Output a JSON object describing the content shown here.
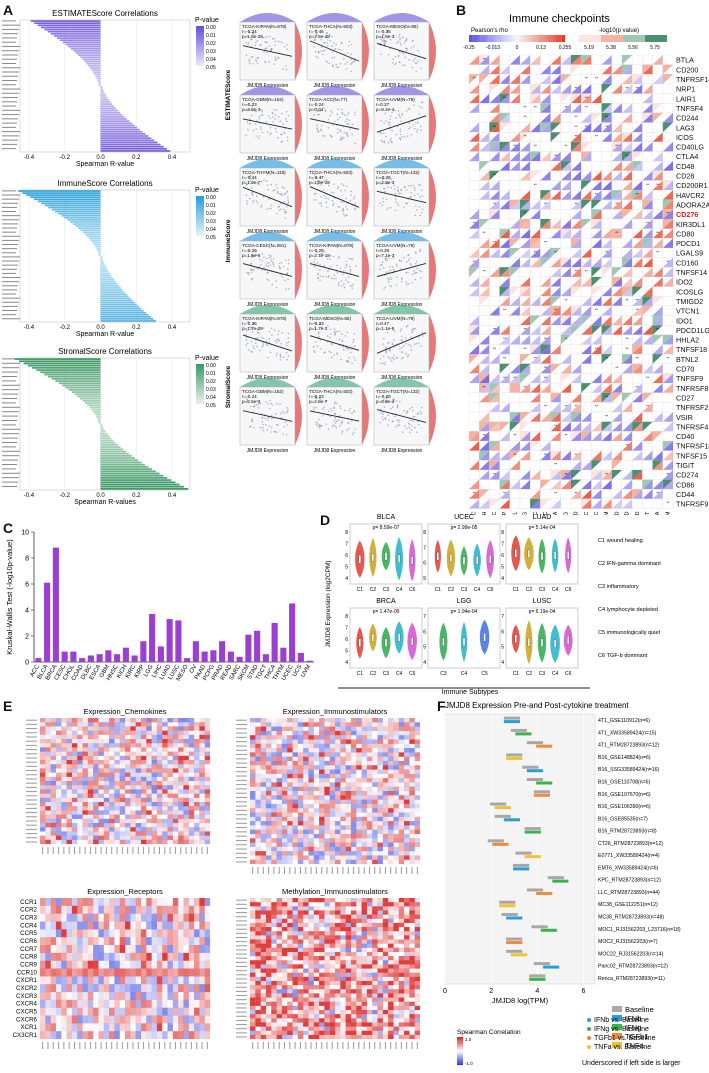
{
  "panels": {
    "A": "A",
    "B": "B",
    "C": "C",
    "D": "D",
    "E": "E",
    "F": "F"
  },
  "panelA": {
    "titles": [
      "ESTIMATEScore Correlations",
      "ImmuneScore Correlations",
      "StromalScore Correlations"
    ],
    "xlabels": [
      "Spearman R-value",
      "Spearman R-value",
      "Spearman R-values"
    ],
    "legend_title": "P-value",
    "legend_ticks": [
      "0.00",
      "0.01",
      "0.02",
      "0.03",
      "0.04",
      "0.05"
    ],
    "xticks": [
      "-0.4",
      "-0.2",
      "0.0",
      "0.2",
      "0.4"
    ],
    "colors": [
      "#6a4fd8",
      "#2aa0d8",
      "#3e9a66"
    ],
    "ylabels": [
      "ESTIMATEScore",
      "ImmuneScore",
      "StromalScore"
    ],
    "scatter_xlabel": "JMJD8 Expression",
    "scatter_panels": [
      {
        "label": "TCGA-KIPAN(N=878)",
        "r": "r=-0.24",
        "p": "p=1.8e-28"
      },
      {
        "label": "TCGA-THCA(N=503)",
        "r": "r=-0.46",
        "p": "p=2.5e-28"
      },
      {
        "label": "TCGA-MESO(N=85)",
        "r": "r=-0.35",
        "p": "p=1.8e-3"
      },
      {
        "label": "TCGA-GBM(N=152)",
        "r": "r=-0.23",
        "p": "p=3.8e-3"
      },
      {
        "label": "TCGA-ACC(N=77)",
        "r": "r=-0.24",
        "p": "p=0.04"
      },
      {
        "label": "TCGA-UVM(N=79)",
        "r": "r=0.37",
        "p": "p=8.2e-4"
      },
      {
        "label": "TCGA-THYM(N=118)",
        "r": "r=-0.44",
        "p": "p=1.9e-7"
      },
      {
        "label": "TCGA-THCA(N=503)",
        "r": "r=-0.47",
        "p": "p=1.9e-28"
      },
      {
        "label": "TCGA-TGCT(N=132)",
        "r": "r=-0.26",
        "p": "p=2.8e-3"
      },
      {
        "label": "TCGA-CESC(N=291)",
        "r": "r=-0.29",
        "p": "p=1.5e-6"
      },
      {
        "label": "TCGA-KIPAN(N=878)",
        "r": "r=-0.29",
        "p": "p=2.7e-18"
      },
      {
        "label": "TCGA-UVM(N=79)",
        "r": "r=0.30",
        "p": "p=7.1e-3"
      },
      {
        "label": "TCGA-KIPAN(N=878)",
        "r": "r=-0.36",
        "p": "p=1.7e-29"
      },
      {
        "label": "TCGA-MESO(N=85)",
        "r": "r=-0.33",
        "p": "p=1.7e-3"
      },
      {
        "label": "TCGA-UVM(N=79)",
        "r": "r=0.47",
        "p": "p=1.1e-5"
      },
      {
        "label": "TCGA-GBM(N=152)",
        "r": "r=-0.24",
        "p": "p=2.5e-3"
      },
      {
        "label": "TCGA-THCA(N=503)",
        "r": "r=-0.23",
        "p": "p=2.8e-7"
      },
      {
        "label": "TCGA-TGCT(N=132)",
        "r": "r=-0.29",
        "p": "p=8.8e-4"
      }
    ]
  },
  "panelB": {
    "title": "Immune checkpoints",
    "rho_label": "Pearson's rho",
    "rho_ticks": [
      "-0.25",
      "-0.013",
      "0",
      "0.13",
      "0.255"
    ],
    "p_label": "-log10(p value)",
    "p_ticks": [
      "5.19",
      "5.38",
      "5.56",
      "5.75"
    ],
    "genes": [
      "BTLA",
      "CD200",
      "TNFRSF14",
      "NRP1",
      "LAIR1",
      "TNFSF4",
      "CD244",
      "LAG3",
      "ICOS",
      "CD40LG",
      "CTLA4",
      "CD48",
      "CD28",
      "CD200R1",
      "HAVCR2",
      "ADORA2A",
      "CD276",
      "KIR3DL1",
      "CD80",
      "PDCD1",
      "LGALS9",
      "CD160",
      "TNFSF14",
      "IDO2",
      "ICOSLG",
      "TMIGD2",
      "VTCN1",
      "IDO1",
      "PDCD1LG2",
      "HHLA2",
      "TNFSF18",
      "BTNL2",
      "CD70",
      "TNFSF9",
      "TNFRSF8",
      "CD27",
      "TNFRSF25",
      "VSIR",
      "TNFRSF4",
      "CD40",
      "TNFRSF18",
      "TNFSF15",
      "TIGIT",
      "CD274",
      "CD86",
      "CD44",
      "TNFRSF9"
    ],
    "highlight_gene": "CD276",
    "cancers": [
      "HNSC",
      "KICH",
      "KIRC",
      "KIRP",
      "LAML",
      "LGG",
      "LIHC",
      "CESC",
      "ESCA",
      "PCPG",
      "COAD",
      "LUSC",
      "UCEC",
      "SKCM",
      "PRAD",
      "READ",
      "LUAD",
      "TGCT",
      "THCA",
      "THYM"
    ]
  },
  "panelC": {
    "chart_data": {
      "type": "bar",
      "title": "",
      "ylabel": "Kruskal-Wallis Test (-log10p-value)",
      "xlabel": "",
      "ylim": [
        0,
        10
      ],
      "yticks": [
        "0",
        "2",
        "4",
        "6",
        "8",
        "10"
      ],
      "categories": [
        "ACC",
        "BLCA",
        "BRCA",
        "CESC",
        "CHOL",
        "COAD",
        "DLBC",
        "ESCA",
        "GBM",
        "HNSC",
        "KICH",
        "KIRC",
        "KIRP",
        "LGG",
        "LIHC",
        "LUAD",
        "LUSC",
        "MESO",
        "OV",
        "PAAD",
        "PCPG",
        "PRAD",
        "READ",
        "SARC",
        "SKCM",
        "STAD",
        "TGCT",
        "THCA",
        "THYM",
        "UCEC",
        "UCS",
        "UVM"
      ],
      "values": [
        0.3,
        6.1,
        8.8,
        0.8,
        0.8,
        0.3,
        0.5,
        0.6,
        0.9,
        0.6,
        1.1,
        0.5,
        1.6,
        3.7,
        1.2,
        3.3,
        3.2,
        0.3,
        1.6,
        0.8,
        0.9,
        1.6,
        0.8,
        0.4,
        2.1,
        2.4,
        0.6,
        3.0,
        1.1,
        4.5,
        0.7,
        0.1
      ],
      "color": "#9b3fd1"
    }
  },
  "panelD": {
    "ylabel": "JMJD8 Expression (log2CPM)",
    "xlabel": "Immune Subtypes",
    "subplots": [
      {
        "title": "BLCA",
        "p": "p= 8.59e-07",
        "cats": [
          "C1",
          "C2",
          "C3",
          "C4",
          "C6"
        ],
        "yticks": [
          "4",
          "5",
          "6",
          "7",
          "8"
        ]
      },
      {
        "title": "UCEC",
        "p": "p= 2.99e-05",
        "cats": [
          "C1",
          "C2",
          "C3",
          "C4",
          "C6"
        ],
        "yticks": [
          "5",
          "6",
          "7",
          "8"
        ]
      },
      {
        "title": "LUAD",
        "p": "p= 5.14e-04",
        "cats": [
          "C1",
          "C2",
          "C3",
          "C4",
          "C6"
        ],
        "yticks": [
          "4",
          "5",
          "6",
          "7",
          "8"
        ]
      },
      {
        "title": "BRCA",
        "p": "p= 1.47e-09",
        "cats": [
          "C1",
          "C2",
          "C3",
          "C4",
          "C6"
        ],
        "yticks": [
          "4",
          "5",
          "6",
          "7",
          "8"
        ]
      },
      {
        "title": "LGG",
        "p": "p= 1.94e-04",
        "cats": [
          "C3",
          "C4",
          "C5"
        ],
        "yticks": [
          "4",
          "5",
          "6",
          "7"
        ]
      },
      {
        "title": "LUSC",
        "p": "p= 6.19e-04",
        "cats": [
          "C1",
          "C2",
          "C3",
          "C4",
          "C6"
        ],
        "yticks": [
          "4",
          "5",
          "6",
          "7"
        ]
      }
    ],
    "legend": [
      "C1 wound healing",
      "C2 IFN-gamma dominant",
      "C3 inflammatory",
      "C4 lymphocyte depleted",
      "C5 immunologically quiet",
      "C6 TGF-b dominant"
    ],
    "colors": [
      "#e23a2e",
      "#c9a21a",
      "#2ea84f",
      "#1fb3c7",
      "#3b6fe0",
      "#d14fcc"
    ]
  },
  "panelE": {
    "titles": [
      "Expression_Chemokines",
      "Expression_Immunostimulators",
      "Expression_Receptors",
      "Methylation_Immunostimulators"
    ],
    "receptors": [
      "CCR1",
      "CCR2",
      "CCR3",
      "CCR4",
      "CCR5",
      "CCR6",
      "CCR7",
      "CCR8",
      "CCR9",
      "CCR10",
      "CXCR1",
      "CXCR2",
      "CXCR3",
      "CXCR4",
      "CXCR5",
      "CXCR6",
      "XCR1",
      "CX3CR1"
    ],
    "legend_title": "Spearman Correlation",
    "legend_ticks": [
      "1.0",
      "-1.0"
    ]
  },
  "panelF": {
    "title": "JMJD8 Expression Pre-and Post-cytokine treatment",
    "xlabel": "JMJD8 log(TPM)",
    "xticks": [
      "0",
      "2",
      "4",
      "6"
    ],
    "rows": [
      "4T1_GSE110912(n=6)",
      "4T1_XW33589424(n=15)",
      "4T1_RTM28723893(n=12)",
      "B16_GSE148824(n=6)",
      "B16_SSG33589424(n=16)",
      "B16_GSE110708(n=6)",
      "B16_GSE107670(n=6)",
      "B16_GSE106390(n=6)",
      "B16_GSE85535(n=7)",
      "B16_RTM28723893(n=8)",
      "CT26_RTM28723893(n=12)",
      "E0771_XW33589424(n=4)",
      "EMT6_XW33589424(n=6)",
      "KPC_RTM28723893(n=12)",
      "LLC_RTM28723893(n=44)",
      "MC38_GSE112251(n=12)",
      "MC38_RTM28723893(n=48)",
      "MOC1_RJ31562203_L23716(n=18)",
      "MOC2_RJ31562203(n=7)",
      "MOC22_RJ31562203(n=14)",
      "Panc02_RTM28723893(n=12)",
      "Renca_RTM28723893(n=11)"
    ],
    "legend": [
      "Baseline",
      "IFNb",
      "IFNg",
      "TGFb1",
      "TNFa"
    ],
    "legend_colors": [
      "#a7a7a7",
      "#2c9bd6",
      "#3db24b",
      "#f08a3c",
      "#f1c232"
    ],
    "legend2": [
      "IFNb vs. Baseline",
      "IFNg vs. Baseline",
      "TGFb1 vs. Baseline",
      "TNFa vs. Baseline"
    ],
    "legend2_colors": [
      "#2c9bd6",
      "#3db24b",
      "#f08a3c",
      "#f1c232"
    ],
    "note": "Underscored if left side is larger"
  }
}
